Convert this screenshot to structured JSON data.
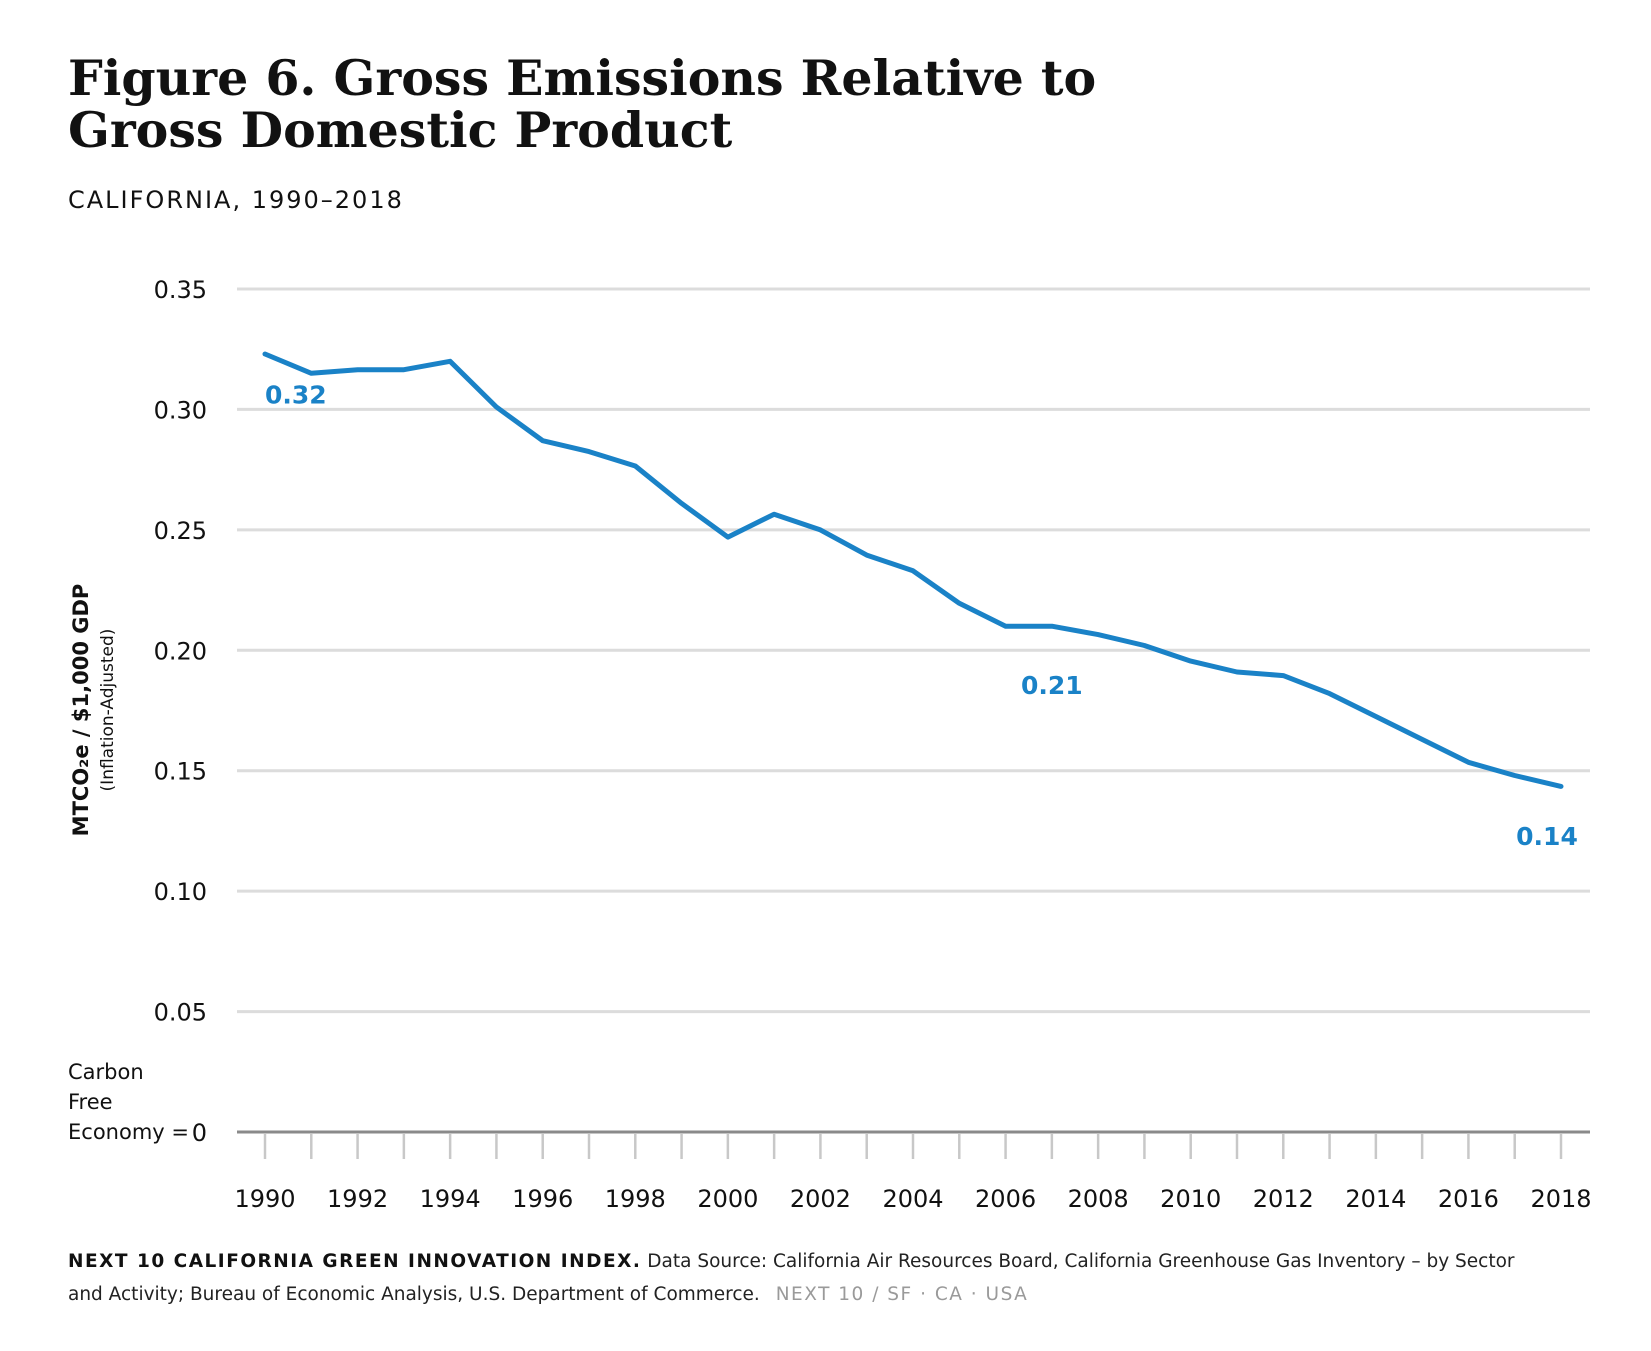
{
  "title_line1": "Figure 6. Gross Emissions Relative to",
  "title_line2": "Gross Domestic Product",
  "subtitle": "CALIFORNIA, 1990–2018",
  "chart_data": {
    "type": "line",
    "title": "Figure 6. Gross Emissions Relative to Gross Domestic Product",
    "subtitle": "CALIFORNIA, 1990–2018",
    "ylabel": "MTCO₂e / $1,000 GDP",
    "ylabel_sub": "(Inflation-Adjusted)",
    "xlabel": "",
    "ylim": [
      0,
      0.35
    ],
    "yticks": [
      "0",
      "0.05",
      "0.10",
      "0.15",
      "0.20",
      "0.25",
      "0.30",
      "0.35"
    ],
    "ytick_values": [
      0,
      0.05,
      0.1,
      0.15,
      0.2,
      0.25,
      0.3,
      0.35
    ],
    "zero_label": [
      "Carbon",
      "Free",
      "Economy = "
    ],
    "xlim": [
      1990,
      2018
    ],
    "xticks": [
      "1990",
      "1992",
      "1994",
      "1996",
      "1998",
      "2000",
      "2002",
      "2004",
      "2006",
      "2008",
      "2010",
      "2012",
      "2014",
      "2016",
      "2018"
    ],
    "x": [
      1990,
      1991,
      1992,
      1993,
      1994,
      1995,
      1996,
      1997,
      1998,
      1999,
      2000,
      2001,
      2002,
      2003,
      2004,
      2005,
      2006,
      2007,
      2008,
      2009,
      2010,
      2011,
      2012,
      2013,
      2014,
      2015,
      2016,
      2017,
      2018
    ],
    "series": [
      {
        "values": [
          0.323,
          0.315,
          0.3165,
          0.3165,
          0.32,
          0.301,
          0.287,
          0.2825,
          0.2765,
          0.261,
          0.247,
          0.2565,
          0.25,
          0.2395,
          0.233,
          0.2195,
          0.21,
          0.21,
          0.2065,
          0.202,
          0.1955,
          0.191,
          0.1895,
          0.182,
          0.1725,
          0.163,
          0.1535,
          0.148,
          0.1435
        ],
        "color": "#1a82c7"
      }
    ],
    "annotations": [
      {
        "x": 1990,
        "y": 0.32,
        "label": "0.32"
      },
      {
        "x": 2007,
        "y": 0.21,
        "label": "0.21"
      },
      {
        "x": 2018,
        "y": 0.14,
        "label": "0.14"
      }
    ],
    "grid": true,
    "line_color": "#1a82c7",
    "grid_color": "#dcdcdc",
    "axis_color": "#8a8a8a"
  },
  "footer": {
    "brand": "NEXT 10 CALIFORNIA GREEN INNOVATION INDEX.",
    "source": "Data Source: California Air Resources Board, California Greenhouse Gas Inventory – by Sector and Activity; Bureau of Economic Analysis, U.S. Department of Commerce.",
    "org": "NEXT 10  /  SF · CA · USA"
  }
}
